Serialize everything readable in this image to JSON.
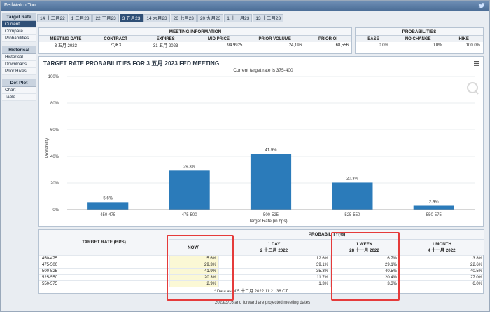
{
  "window": {
    "title": "FedWatch Tool",
    "twitter_icon": "twitter-bird-icon"
  },
  "sidebar": {
    "sections": [
      {
        "header": "Target Rate",
        "items": [
          "Current",
          "Compare",
          "Probabilities"
        ],
        "active": 0
      },
      {
        "header": "Historical",
        "items": [
          "Historical",
          "Downloads",
          "Prior Hikes"
        ],
        "active": -1
      },
      {
        "header": "Dot Plot",
        "items": [
          "Chart",
          "Table"
        ],
        "active": -1
      }
    ]
  },
  "tabs": {
    "items": [
      "14 十二月22",
      "1 二月23",
      "22 三月23",
      "3 五月23",
      "14 六月23",
      "26 七月23",
      "20 九月23",
      "1 十一月23",
      "13 十二月23"
    ],
    "active": 3
  },
  "meeting_info": {
    "header": "MEETING INFORMATION",
    "columns": [
      "MEETING DATE",
      "CONTRACT",
      "EXPIRES",
      "MID PRICE",
      "PRIOR VOLUME",
      "PRIOR OI"
    ],
    "values": [
      "3 五月 2023",
      "ZQK3",
      "31 五月 2023",
      "94.9925",
      "24,196",
      "68,556"
    ]
  },
  "probabilities": {
    "header": "PROBABILITIES",
    "columns": [
      "EASE",
      "NO CHANGE",
      "HIKE"
    ],
    "values": [
      "0.0%",
      "0.0%",
      "100.0%"
    ]
  },
  "chart_data": {
    "type": "bar",
    "title": "TARGET RATE PROBABILITIES FOR 3 五月 2023 FED MEETING",
    "subtitle": "Current target rate is 375-400",
    "categories": [
      "450-475",
      "475-500",
      "500-525",
      "525-550",
      "550-575"
    ],
    "values": [
      5.6,
      29.3,
      41.9,
      20.3,
      2.9
    ],
    "data_labels": [
      "5.6%",
      "29.3%",
      "41.9%",
      "20.3%",
      "2.9%"
    ],
    "xlabel": "Target Rate (in bps)",
    "ylabel": "Probability",
    "ylim": [
      0,
      100
    ],
    "yticks": [
      0,
      20,
      40,
      60,
      80,
      100
    ],
    "ytick_labels": [
      "0%",
      "20%",
      "40%",
      "60%",
      "80%",
      "100%"
    ],
    "grid": true,
    "bar_color": "#2b7bba"
  },
  "prob_table": {
    "header": "PROBABILITY(%)",
    "target_header": "TARGET RATE (BPS)",
    "columns": [
      {
        "label": "NOW",
        "sub": "",
        "marker": "*"
      },
      {
        "label": "1 DAY",
        "sub": "2 十二月 2022",
        "marker": ""
      },
      {
        "label": "1 WEEK",
        "sub": "28 十一月 2022",
        "marker": ""
      },
      {
        "label": "1 MONTH",
        "sub": "4 十一月 2022",
        "marker": ""
      }
    ],
    "rows": [
      {
        "rate": "450-475",
        "vals": [
          "5.6%",
          "12.6%",
          "6.7%",
          "3.8%"
        ]
      },
      {
        "rate": "475-500",
        "vals": [
          "29.3%",
          "39.1%",
          "29.1%",
          "22.6%"
        ]
      },
      {
        "rate": "500-525",
        "vals": [
          "41.9%",
          "35.3%",
          "40.5%",
          "40.5%"
        ]
      },
      {
        "rate": "525-550",
        "vals": [
          "20.3%",
          "11.7%",
          "20.4%",
          "27.0%"
        ]
      },
      {
        "rate": "550-575",
        "vals": [
          "2.9%",
          "1.3%",
          "3.3%",
          "6.0%"
        ]
      }
    ],
    "footnote_1": "* Data as of 5 十二月 2022 11:21:36 CT",
    "footnote_2": "2023/3/16 and forward are projected meeting dates"
  },
  "colors": {
    "accent": "#2f4f76",
    "highlight": "#e53b3b",
    "now_bg": "#fbf8d5"
  }
}
